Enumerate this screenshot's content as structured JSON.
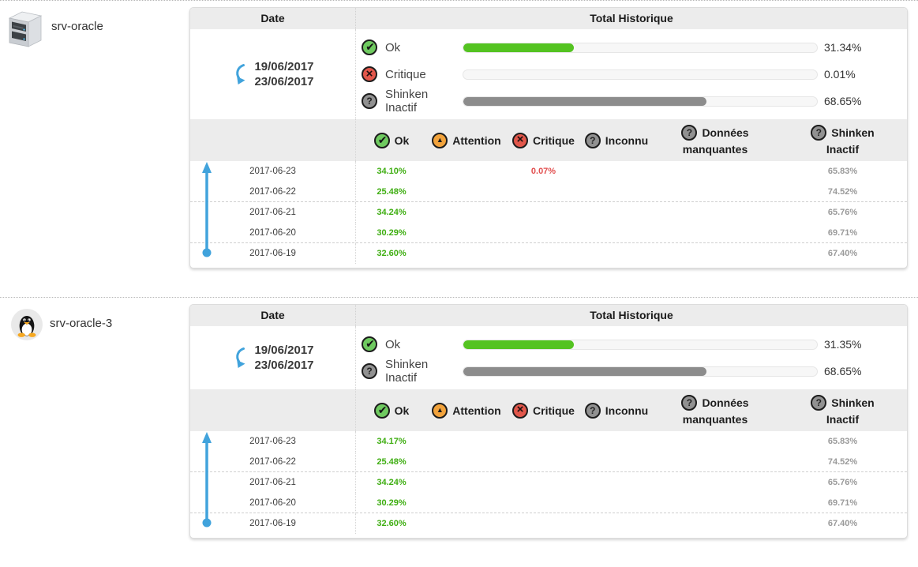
{
  "colors": {
    "ok_green": "#54c321",
    "critique_red": "#e2574b",
    "inactive_gray": "#8c8c8c",
    "accent_blue": "#41a3dc",
    "header_bg": "#ececec"
  },
  "hosts": [
    {
      "name": "srv-oracle",
      "icon": "server-icon",
      "table": {
        "date_header": "Date",
        "total_header": "Total Historique",
        "date_range": {
          "from": "19/06/2017",
          "to": "23/06/2017"
        },
        "summary": [
          {
            "icon": "ok-icon",
            "label": "Ok",
            "pct": 31.34,
            "pct_label": "31.34%",
            "bar_color": "#54c321"
          },
          {
            "icon": "critique-icon",
            "label": "Critique",
            "pct": 0.01,
            "pct_label": "0.01%",
            "bar_color": "#e2574b"
          },
          {
            "icon": "inconnu-icon",
            "label": "Shinken Inactif",
            "pct": 68.65,
            "pct_label": "68.65%",
            "bar_color": "#8c8c8c"
          }
        ],
        "columns": [
          {
            "key": "ok",
            "icon": "ok-icon",
            "label_lines": [
              "Ok"
            ]
          },
          {
            "key": "attention",
            "icon": "attention-icon",
            "label_lines": [
              "Attention"
            ]
          },
          {
            "key": "critique",
            "icon": "critique-icon",
            "label_lines": [
              "Critique"
            ]
          },
          {
            "key": "inconnu",
            "icon": "inconnu-icon",
            "label_lines": [
              "Inconnu"
            ]
          },
          {
            "key": "donnees",
            "icon": "inconnu-icon",
            "label_lines": [
              "Données",
              "manquantes"
            ]
          },
          {
            "key": "shinken",
            "icon": "inconnu-icon",
            "label_lines": [
              "Shinken",
              "Inactif"
            ]
          }
        ],
        "rows": [
          {
            "date": "2017-06-23",
            "ok": "34.10%",
            "attention": "",
            "critique": "0.07%",
            "inconnu": "",
            "donnees": "",
            "shinken": "65.83%"
          },
          {
            "date": "2017-06-22",
            "ok": "25.48%",
            "attention": "",
            "critique": "",
            "inconnu": "",
            "donnees": "",
            "shinken": "74.52%"
          },
          {
            "date": "2017-06-21",
            "ok": "34.24%",
            "attention": "",
            "critique": "",
            "inconnu": "",
            "donnees": "",
            "shinken": "65.76%"
          },
          {
            "date": "2017-06-20",
            "ok": "30.29%",
            "attention": "",
            "critique": "",
            "inconnu": "",
            "donnees": "",
            "shinken": "69.71%"
          },
          {
            "date": "2017-06-19",
            "ok": "32.60%",
            "attention": "",
            "critique": "",
            "inconnu": "",
            "donnees": "",
            "shinken": "67.40%"
          }
        ]
      }
    },
    {
      "name": "srv-oracle-3",
      "icon": "linux-penguin-icon",
      "table": {
        "date_header": "Date",
        "total_header": "Total Historique",
        "date_range": {
          "from": "19/06/2017",
          "to": "23/06/2017"
        },
        "summary": [
          {
            "icon": "ok-icon",
            "label": "Ok",
            "pct": 31.35,
            "pct_label": "31.35%",
            "bar_color": "#54c321"
          },
          {
            "icon": "inconnu-icon",
            "label": "Shinken Inactif",
            "pct": 68.65,
            "pct_label": "68.65%",
            "bar_color": "#8c8c8c"
          }
        ],
        "columns": [
          {
            "key": "ok",
            "icon": "ok-icon",
            "label_lines": [
              "Ok"
            ]
          },
          {
            "key": "attention",
            "icon": "attention-icon",
            "label_lines": [
              "Attention"
            ]
          },
          {
            "key": "critique",
            "icon": "critique-icon",
            "label_lines": [
              "Critique"
            ]
          },
          {
            "key": "inconnu",
            "icon": "inconnu-icon",
            "label_lines": [
              "Inconnu"
            ]
          },
          {
            "key": "donnees",
            "icon": "inconnu-icon",
            "label_lines": [
              "Données",
              "manquantes"
            ]
          },
          {
            "key": "shinken",
            "icon": "inconnu-icon",
            "label_lines": [
              "Shinken",
              "Inactif"
            ]
          }
        ],
        "rows": [
          {
            "date": "2017-06-23",
            "ok": "34.17%",
            "attention": "",
            "critique": "",
            "inconnu": "",
            "donnees": "",
            "shinken": "65.83%"
          },
          {
            "date": "2017-06-22",
            "ok": "25.48%",
            "attention": "",
            "critique": "",
            "inconnu": "",
            "donnees": "",
            "shinken": "74.52%"
          },
          {
            "date": "2017-06-21",
            "ok": "34.24%",
            "attention": "",
            "critique": "",
            "inconnu": "",
            "donnees": "",
            "shinken": "65.76%"
          },
          {
            "date": "2017-06-20",
            "ok": "30.29%",
            "attention": "",
            "critique": "",
            "inconnu": "",
            "donnees": "",
            "shinken": "69.71%"
          },
          {
            "date": "2017-06-19",
            "ok": "32.60%",
            "attention": "",
            "critique": "",
            "inconnu": "",
            "donnees": "",
            "shinken": "67.40%"
          }
        ]
      }
    }
  ]
}
